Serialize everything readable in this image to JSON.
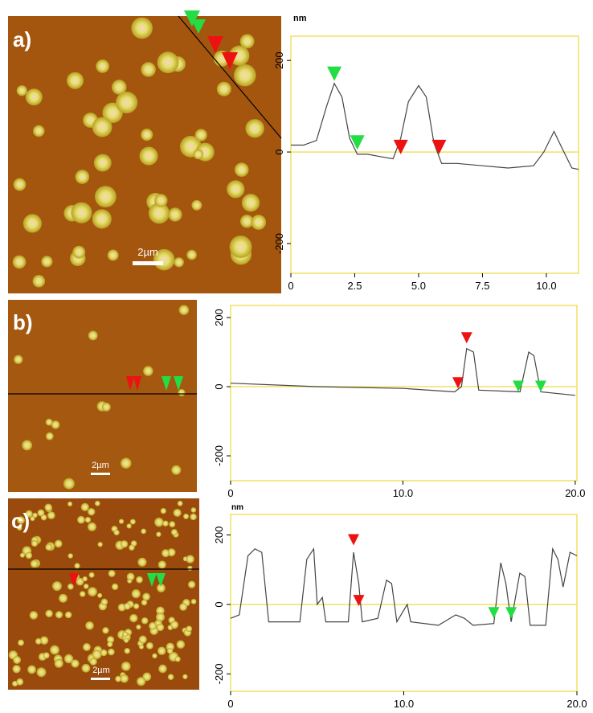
{
  "chart_data": [
    {
      "type": "line",
      "panel_label": "a)",
      "scale_bar": "2µm",
      "y_unit": "nm",
      "x": [
        0,
        0.5,
        1.0,
        1.4,
        1.7,
        2.0,
        2.3,
        2.6,
        3.0,
        3.5,
        4.0,
        4.3,
        4.6,
        5.0,
        5.3,
        5.6,
        5.9,
        6.5,
        7.5,
        8.5,
        9.5,
        9.9,
        10.3,
        10.6,
        11.0,
        11.26
      ],
      "values": [
        15,
        15,
        25,
        100,
        150,
        120,
        30,
        -5,
        -5,
        -10,
        -15,
        30,
        110,
        145,
        120,
        20,
        -25,
        -25,
        -30,
        -35,
        -30,
        0,
        45,
        10,
        -35,
        -38
      ],
      "xlim": [
        0,
        11.26
      ],
      "ylim": [
        -265,
        253
      ],
      "xticks": [
        0,
        2.5,
        {
          "value": 5,
          "label": "5.0"
        },
        7.5,
        {
          "value": 10,
          "label": "10.0"
        }
      ],
      "yticks": [
        -200,
        0,
        200
      ],
      "markers": [
        {
          "x": 1.7,
          "y": 155,
          "color": "#22dd44"
        },
        {
          "x": 2.6,
          "y": 5,
          "color": "#22dd44"
        },
        {
          "x": 4.3,
          "y": -5,
          "color": "#ee1111"
        },
        {
          "x": 5.8,
          "y": -5,
          "color": "#ee1111"
        }
      ]
    },
    {
      "type": "line",
      "panel_label": "b)",
      "scale_bar": "2µm",
      "x": [
        0,
        5,
        10,
        13.0,
        13.4,
        13.7,
        14.1,
        14.4,
        16.8,
        17.3,
        17.6,
        18.0,
        20
      ],
      "values": [
        10,
        0,
        -5,
        -15,
        0,
        110,
        100,
        -10,
        -15,
        100,
        90,
        -15,
        -25
      ],
      "xlim": [
        0,
        20.1
      ],
      "ylim": [
        -272,
        235
      ],
      "xticks": [
        0,
        {
          "value": 10,
          "label": "10.0"
        },
        {
          "value": 20,
          "label": "20.0"
        }
      ],
      "yticks": [
        -200,
        0,
        200
      ],
      "markers": [
        {
          "x": 13.2,
          "y": -5,
          "color": "#ee1111"
        },
        {
          "x": 13.7,
          "y": 125,
          "color": "#ee1111"
        },
        {
          "x": 16.7,
          "y": -15,
          "color": "#22dd44"
        },
        {
          "x": 18.0,
          "y": -15,
          "color": "#22dd44"
        }
      ]
    },
    {
      "type": "line",
      "panel_label": "c)",
      "scale_bar": "2µm",
      "y_unit": "nm",
      "x": [
        0,
        0.5,
        1.0,
        1.4,
        1.8,
        2.2,
        4.0,
        4.4,
        4.8,
        5.0,
        5.3,
        5.5,
        6.8,
        7.1,
        7.4,
        7.6,
        8.5,
        9.0,
        9.3,
        9.6,
        10.2,
        10.4,
        12.0,
        13.0,
        13.5,
        14.0,
        15.2,
        15.6,
        15.9,
        16.2,
        16.7,
        17.0,
        17.3,
        18.2,
        18.6,
        18.9,
        19.2,
        19.6,
        20
      ],
      "values": [
        -40,
        -30,
        140,
        160,
        150,
        -50,
        -50,
        130,
        160,
        0,
        20,
        -50,
        -50,
        150,
        60,
        -50,
        -40,
        70,
        60,
        -50,
        0,
        -50,
        -60,
        -30,
        -40,
        -60,
        -55,
        120,
        60,
        -50,
        90,
        80,
        -60,
        -60,
        160,
        130,
        50,
        150,
        140
      ],
      "xlim": [
        0,
        20
      ],
      "ylim": [
        -250,
        259
      ],
      "xticks": [
        0,
        {
          "value": 10,
          "label": "10.0"
        },
        {
          "value": 20,
          "label": "20.0"
        }
      ],
      "yticks": [
        -200,
        0,
        200
      ],
      "markers": [
        {
          "x": 7.1,
          "y": 170,
          "color": "#ee1111"
        },
        {
          "x": 7.4,
          "y": -5,
          "color": "#ee1111"
        },
        {
          "x": 15.2,
          "y": -40,
          "color": "#22dd44"
        },
        {
          "x": 16.2,
          "y": -40,
          "color": "#22dd44"
        }
      ]
    }
  ]
}
